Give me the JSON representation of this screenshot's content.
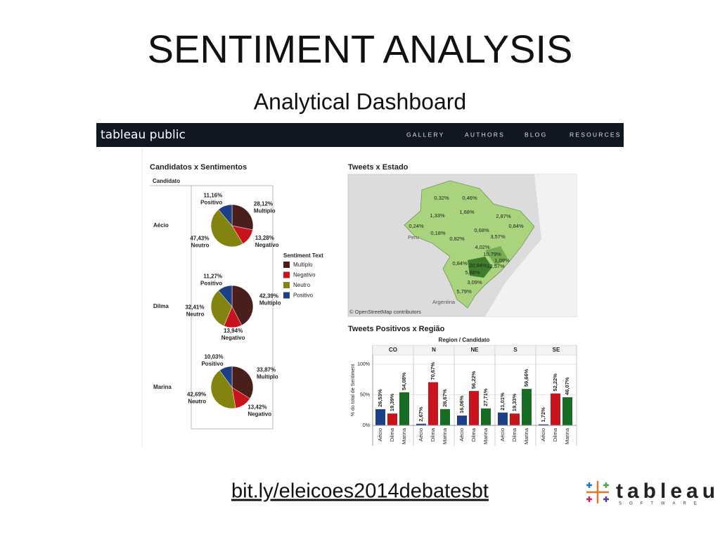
{
  "title": "SENTIMENT ANALYSIS",
  "subtitle": "Analytical Dashboard",
  "nav": {
    "logo": "tableau public",
    "items": [
      "GALLERY",
      "AUTHORS",
      "BLOG",
      "RESOURCES"
    ]
  },
  "map": {
    "title": "Tweets x Estado",
    "labels": [
      "0,32%",
      "0,46%",
      "1,33%",
      "1,68%",
      "2,87%",
      "0,24%",
      "0,18%",
      "0,68%",
      "0,84%",
      "3,57%",
      "0,82%",
      "4,02%",
      "10,79%",
      "1,09%",
      "0,84%",
      "20,84%",
      "12,57%",
      "5,88%",
      "3,09%",
      "5,79%"
    ],
    "places": [
      "Peru",
      "Argentina"
    ],
    "credit": "© OpenStreetMap contributors"
  },
  "chart_data": [
    {
      "type": "pie",
      "title": "Candidatos x Sentimentos",
      "header": "Candidato",
      "categories": [
        "Multiplo",
        "Negativo",
        "Neutro",
        "Positivo"
      ],
      "colors": [
        "#4a1e1a",
        "#c8141c",
        "#82840f",
        "#1c3f85"
      ],
      "legend_title": "Sentiment Text",
      "charts": [
        {
          "name": "Aécio",
          "values": [
            28.12,
            13.28,
            47.43,
            11.16
          ],
          "value_labels": [
            "28,12%",
            "13,28%",
            "47,43%",
            "11,16%"
          ]
        },
        {
          "name": "Dilma",
          "values": [
            42.39,
            13.94,
            32.41,
            11.27
          ],
          "value_labels": [
            "42,39%",
            "13,94%",
            "32,41%",
            "11,27%"
          ]
        },
        {
          "name": "Marina",
          "values": [
            33.87,
            13.42,
            42.69,
            10.03
          ],
          "value_labels": [
            "33,87%",
            "13,42%",
            "42,69%",
            "10,03%"
          ]
        }
      ]
    },
    {
      "type": "bar",
      "title": "Tweets Positivos x Região",
      "header": "Region / Candidato",
      "ylabel": "% do total de Sentiment",
      "categories": [
        "Aécio",
        "Dilma",
        "Marina"
      ],
      "colors": [
        "#1c3f85",
        "#c8141c",
        "#186b22"
      ],
      "ylim": [
        0,
        115
      ],
      "yticks": [
        {
          "value": 0,
          "label": "0%"
        },
        {
          "value": 50,
          "label": "50%"
        },
        {
          "value": 100,
          "label": "100%"
        }
      ],
      "grid": true,
      "series": [
        {
          "name": "CO",
          "values": [
            26.53,
            19.39,
            54.08
          ],
          "value_labels": [
            "26,53%",
            "19,39%",
            "54,08%"
          ]
        },
        {
          "name": "N",
          "values": [
            2.67,
            70.67,
            26.67
          ],
          "value_labels": [
            "2,67%",
            "70,67%",
            "26,67%"
          ]
        },
        {
          "name": "NE",
          "values": [
            16.06,
            56.22,
            27.71
          ],
          "value_labels": [
            "16,06%",
            "56,22%",
            "27,71%"
          ]
        },
        {
          "name": "S",
          "values": [
            21.01,
            19.33,
            59.66
          ],
          "value_labels": [
            "21,01%",
            "19,33%",
            "59,66%"
          ]
        },
        {
          "name": "SE",
          "values": [
            1.72,
            52.22,
            46.07
          ],
          "value_labels": [
            "1,72%",
            "52,22%",
            "46,07%"
          ]
        }
      ]
    }
  ],
  "footer": {
    "link": "bit.ly/eleicoes2014debatesbt",
    "wordmark": "tableau",
    "tagline": "SOFTWARE"
  }
}
